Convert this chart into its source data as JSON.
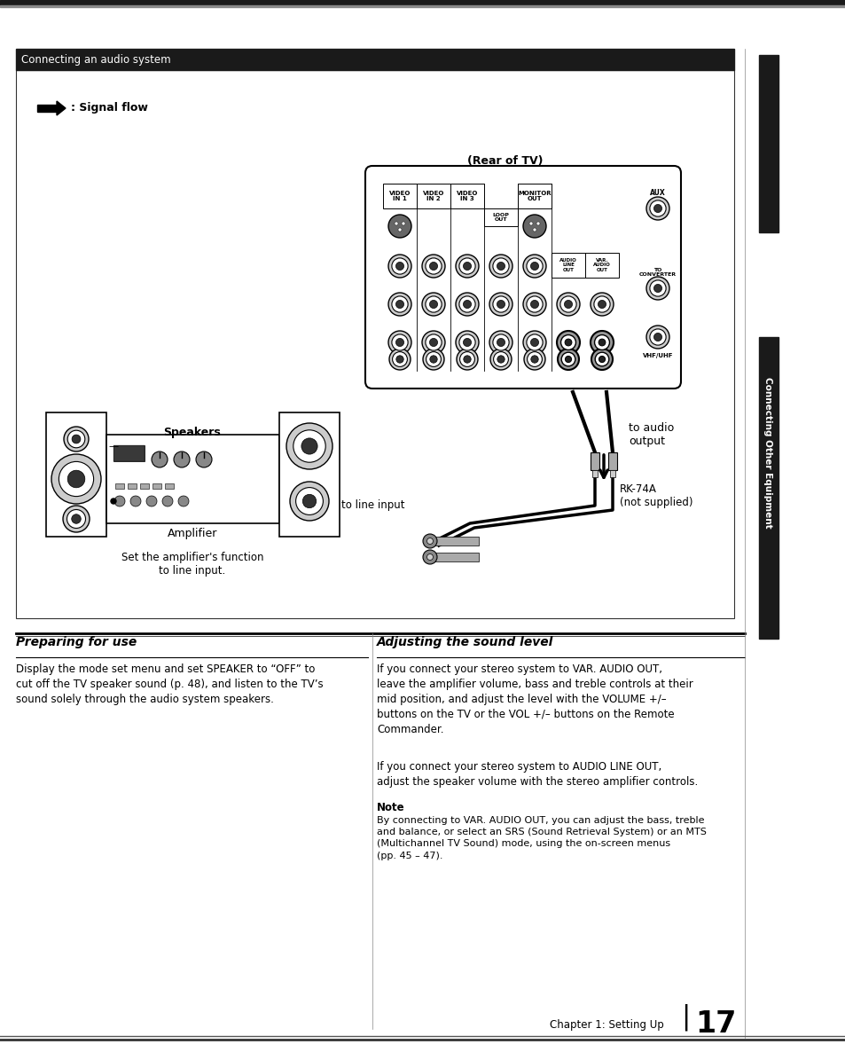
{
  "bg_color": "#ffffff",
  "top_bar_text": "Connecting an audio system",
  "signal_flow_text": ": Signal flow",
  "rear_tv_text": "(Rear of TV)",
  "to_audio_output": "to audio\noutput",
  "rk74a_text": "RK-74A\n(not supplied)",
  "to_line_input": "to line input",
  "speakers_text": "Speakers",
  "amplifier_text": "Amplifier",
  "set_amplifier_text": "Set the amplifier's function\nto line input.",
  "section1_title": "Preparing for use",
  "section1_body": "Display the mode set menu and set SPEAKER to “OFF” to\ncut off the TV speaker sound (p. 48), and listen to the TV’s\nsound solely through the audio system speakers.",
  "section2_title": "Adjusting the sound level",
  "section2_para1": "If you connect your stereo system to VAR. AUDIO OUT,\nleave the amplifier volume, bass and treble controls at their\nmid position, and adjust the level with the VOLUME +/–\nbuttons on the TV or the VOL +/– buttons on the Remote\nCommander.",
  "section2_para2": "If you connect your stereo system to AUDIO LINE OUT,\nadjust the speaker volume with the stereo amplifier controls.",
  "note_title": "Note",
  "note_body": "By connecting to VAR. AUDIO OUT, you can adjust the bass, treble\nand balance, or select an SRS (Sound Retrieval System) or an MTS\n(Multichannel TV Sound) mode, using the on-screen menus\n(pp. 45 – 47).",
  "footer_text": "Chapter 1: Setting Up",
  "page_number": "17",
  "right_tab_text": "Connecting Other Equipment"
}
